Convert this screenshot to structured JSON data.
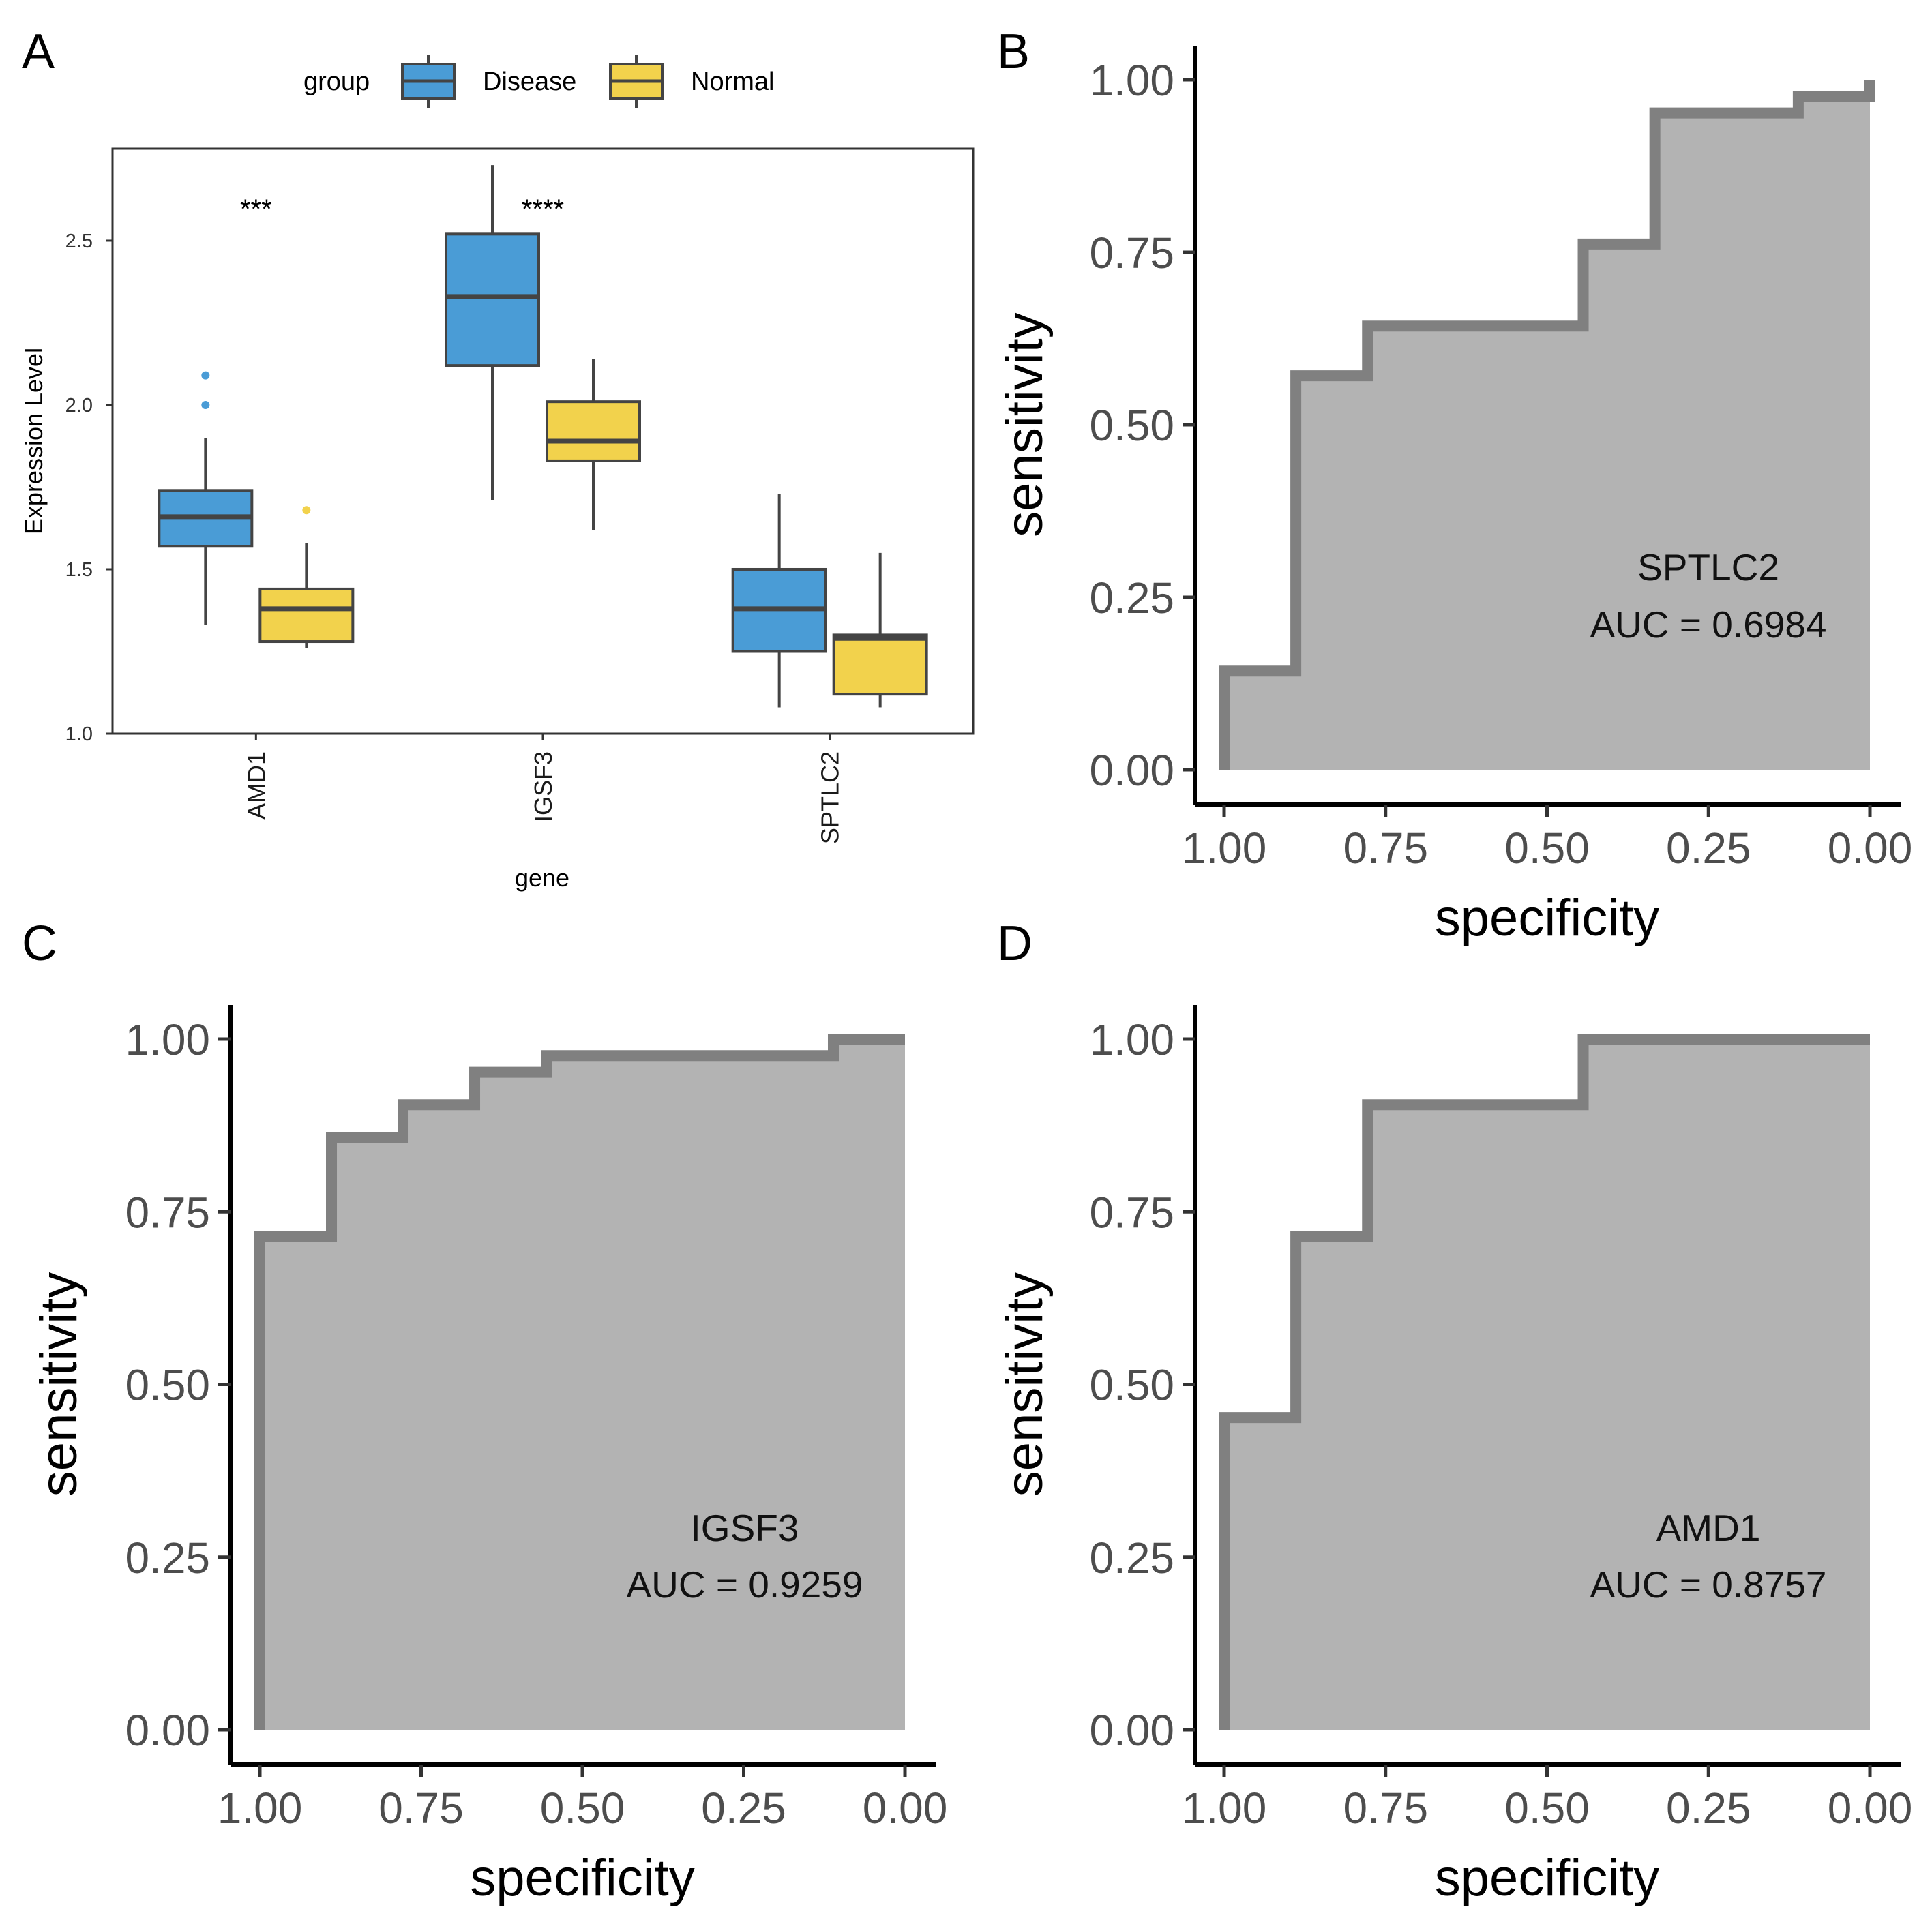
{
  "chart_data": [
    {
      "type": "box",
      "panel_label": "A",
      "title": "",
      "xlabel": "gene",
      "ylabel": "Expression Level",
      "ylim": [
        1.0,
        2.78
      ],
      "yticks": [
        1.0,
        1.5,
        2.0,
        2.5
      ],
      "ytick_labels": [
        "1.0",
        "1.5",
        "2.0",
        "2.5"
      ],
      "categories": [
        "AMD1",
        "IGSF3",
        "SPTLC2"
      ],
      "legend": {
        "title": "group",
        "position": "top",
        "entries": [
          {
            "label": "Disease",
            "color": "#4a9cd6"
          },
          {
            "label": "Normal",
            "color": "#f2d24c"
          }
        ]
      },
      "series": [
        {
          "name": "Disease",
          "color": "#4a9cd6",
          "boxes": [
            {
              "min": 1.33,
              "q1": 1.57,
              "median": 1.66,
              "q3": 1.74,
              "max": 1.9,
              "outliers": [
                2.0,
                2.09
              ]
            },
            {
              "min": 1.71,
              "q1": 2.12,
              "median": 2.33,
              "q3": 2.52,
              "max": 2.73,
              "outliers": []
            },
            {
              "min": 1.08,
              "q1": 1.25,
              "median": 1.38,
              "q3": 1.5,
              "max": 1.73,
              "outliers": []
            }
          ]
        },
        {
          "name": "Normal",
          "color": "#f2d24c",
          "boxes": [
            {
              "min": 1.26,
              "q1": 1.28,
              "median": 1.38,
              "q3": 1.44,
              "max": 1.58,
              "outliers": [
                1.68
              ]
            },
            {
              "min": 1.62,
              "q1": 1.83,
              "median": 1.89,
              "q3": 2.01,
              "max": 2.14,
              "outliers": []
            },
            {
              "min": 1.08,
              "q1": 1.12,
              "median": 1.29,
              "q3": 1.3,
              "max": 1.55,
              "outliers": []
            }
          ]
        }
      ],
      "significance": [
        {
          "category": "AMD1",
          "label": "***"
        },
        {
          "category": "IGSF3",
          "label": "****"
        }
      ]
    },
    {
      "type": "roc",
      "panel_label": "B",
      "gene": "SPTLC2",
      "auc_label": "AUC = 0.6984",
      "xlabel": "specificity",
      "ylabel": "sensitivity",
      "xlim": [
        1.0,
        0.0
      ],
      "ylim": [
        0.0,
        1.0
      ],
      "xticks": [
        "1.00",
        "0.75",
        "0.50",
        "0.25",
        "0.00"
      ],
      "yticks": [
        "0.00",
        "0.25",
        "0.50",
        "0.75",
        "1.00"
      ],
      "points": [
        {
          "specificity": 1.0,
          "sensitivity": 0.0
        },
        {
          "specificity": 1.0,
          "sensitivity": 0.143
        },
        {
          "specificity": 0.889,
          "sensitivity": 0.143
        },
        {
          "specificity": 0.889,
          "sensitivity": 0.571
        },
        {
          "specificity": 0.778,
          "sensitivity": 0.571
        },
        {
          "specificity": 0.778,
          "sensitivity": 0.643
        },
        {
          "specificity": 0.444,
          "sensitivity": 0.643
        },
        {
          "specificity": 0.444,
          "sensitivity": 0.762
        },
        {
          "specificity": 0.333,
          "sensitivity": 0.762
        },
        {
          "specificity": 0.333,
          "sensitivity": 0.952
        },
        {
          "specificity": 0.111,
          "sensitivity": 0.952
        },
        {
          "specificity": 0.111,
          "sensitivity": 0.976
        },
        {
          "specificity": 0.0,
          "sensitivity": 0.976
        },
        {
          "specificity": 0.0,
          "sensitivity": 1.0
        }
      ]
    },
    {
      "type": "roc",
      "panel_label": "C",
      "gene": "IGSF3",
      "auc_label": "AUC = 0.9259",
      "xlabel": "specificity",
      "ylabel": "sensitivity",
      "xlim": [
        1.0,
        0.0
      ],
      "ylim": [
        0.0,
        1.0
      ],
      "xticks": [
        "1.00",
        "0.75",
        "0.50",
        "0.25",
        "0.00"
      ],
      "yticks": [
        "0.00",
        "0.25",
        "0.50",
        "0.75",
        "1.00"
      ],
      "points": [
        {
          "specificity": 1.0,
          "sensitivity": 0.0
        },
        {
          "specificity": 1.0,
          "sensitivity": 0.714
        },
        {
          "specificity": 0.889,
          "sensitivity": 0.714
        },
        {
          "specificity": 0.889,
          "sensitivity": 0.857
        },
        {
          "specificity": 0.778,
          "sensitivity": 0.857
        },
        {
          "specificity": 0.778,
          "sensitivity": 0.905
        },
        {
          "specificity": 0.667,
          "sensitivity": 0.905
        },
        {
          "specificity": 0.667,
          "sensitivity": 0.952
        },
        {
          "specificity": 0.556,
          "sensitivity": 0.952
        },
        {
          "specificity": 0.556,
          "sensitivity": 0.976
        },
        {
          "specificity": 0.111,
          "sensitivity": 0.976
        },
        {
          "specificity": 0.111,
          "sensitivity": 1.0
        },
        {
          "specificity": 0.0,
          "sensitivity": 1.0
        }
      ]
    },
    {
      "type": "roc",
      "panel_label": "D",
      "gene": "AMD1",
      "auc_label": "AUC = 0.8757",
      "xlabel": "specificity",
      "ylabel": "sensitivity",
      "xlim": [
        1.0,
        0.0
      ],
      "ylim": [
        0.0,
        1.0
      ],
      "xticks": [
        "1.00",
        "0.75",
        "0.50",
        "0.25",
        "0.00"
      ],
      "yticks": [
        "0.00",
        "0.25",
        "0.50",
        "0.75",
        "1.00"
      ],
      "points": [
        {
          "specificity": 1.0,
          "sensitivity": 0.0
        },
        {
          "specificity": 1.0,
          "sensitivity": 0.452
        },
        {
          "specificity": 0.889,
          "sensitivity": 0.452
        },
        {
          "specificity": 0.889,
          "sensitivity": 0.714
        },
        {
          "specificity": 0.778,
          "sensitivity": 0.714
        },
        {
          "specificity": 0.778,
          "sensitivity": 0.905
        },
        {
          "specificity": 0.444,
          "sensitivity": 0.905
        },
        {
          "specificity": 0.444,
          "sensitivity": 1.0
        },
        {
          "specificity": 0.0,
          "sensitivity": 1.0
        }
      ]
    }
  ]
}
